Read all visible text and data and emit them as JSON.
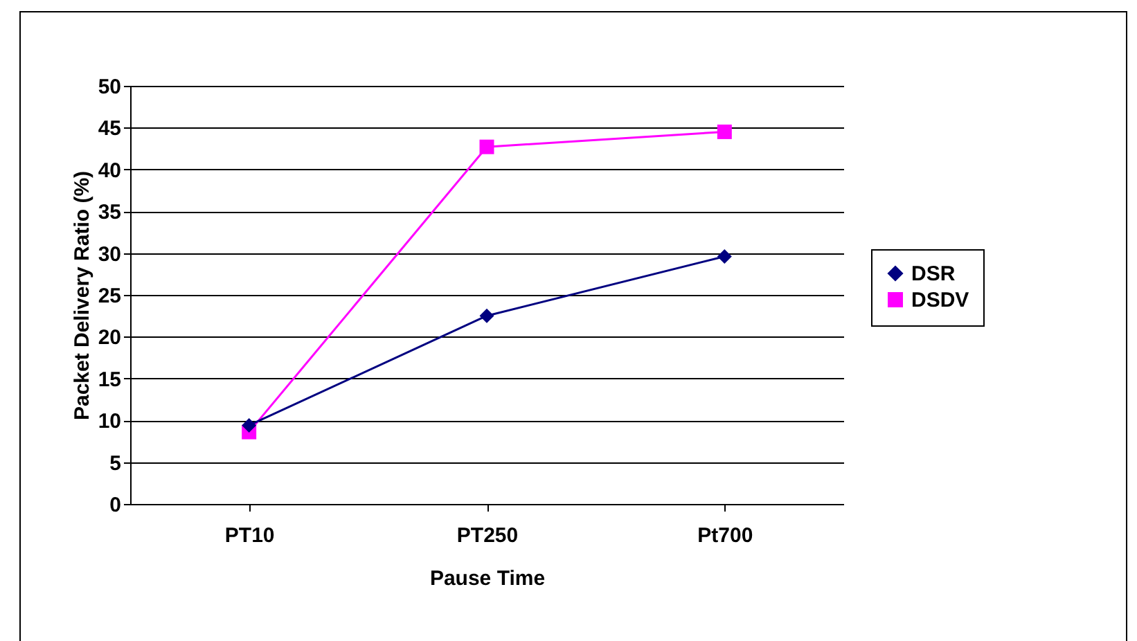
{
  "chart_data": {
    "type": "line",
    "xlabel": "Pause Time",
    "ylabel": "Packet Delivery Ratio (%)",
    "categories": [
      "PT10",
      "PT250",
      "Pt700"
    ],
    "series": [
      {
        "name": "DSR",
        "color": "#000080",
        "marker": "diamond",
        "values": [
          9.4,
          22.5,
          29.6
        ]
      },
      {
        "name": "DSDV",
        "color": "#ff00ff",
        "marker": "square",
        "values": [
          8.6,
          42.7,
          44.5
        ]
      }
    ],
    "ylim": [
      0,
      50
    ],
    "yticks": [
      0,
      5,
      10,
      15,
      20,
      25,
      30,
      35,
      40,
      45,
      50
    ],
    "grid": "y",
    "legend": "right"
  }
}
